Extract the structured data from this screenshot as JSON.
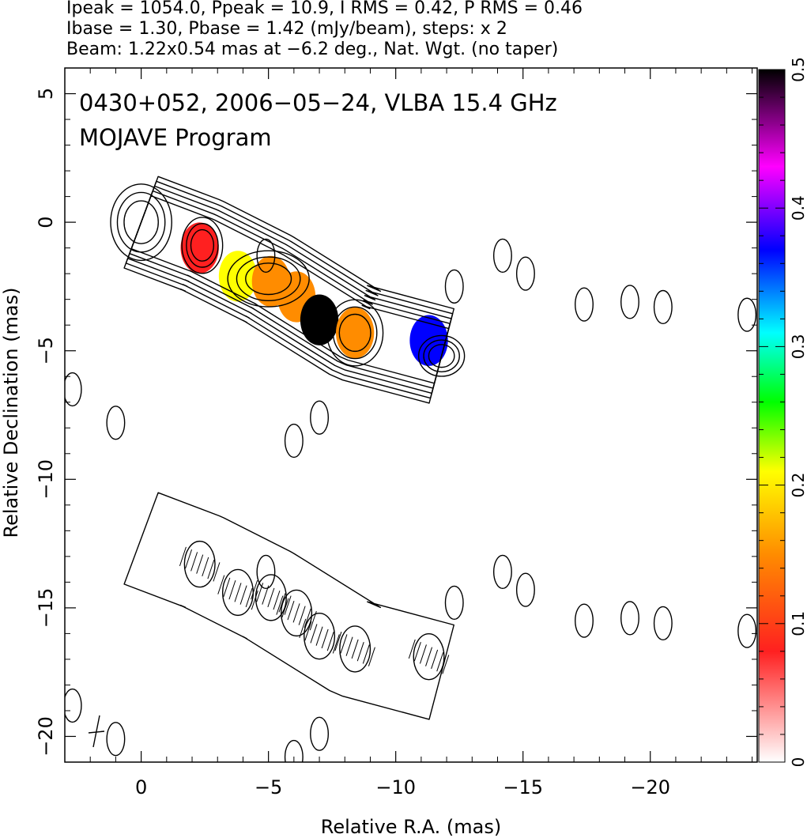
{
  "header": {
    "line1": "Ipeak = 1054.0, Ppeak = 10.9, I RMS = 0.42, P RMS = 0.46",
    "line2": "Ibase = 1.30, Pbase = 1.42 (mJy/beam), steps: x 2",
    "line3": "Beam: 1.22x0.54 mas at −6.2 deg., Nat. Wgt. (no taper)"
  },
  "chart_data": {
    "type": "heatmap",
    "title": "0430+052, 2006−05−24, VLBA 15.4 GHz",
    "subtitle": "MOJAVE Program",
    "xlabel": "Relative R.A. (mas)",
    "ylabel": "Relative Declination (mas)",
    "xlim": [
      3,
      -24.2
    ],
    "ylim": [
      -21,
      6
    ],
    "x_ticks": [
      0,
      -5,
      -10,
      -15,
      -20
    ],
    "x_tick_labels": [
      "0",
      "−5",
      "−10",
      "−15",
      "−20"
    ],
    "y_ticks": [
      5,
      0,
      -5,
      -10,
      -15,
      -20
    ],
    "y_tick_labels": [
      "5",
      "0",
      "−5",
      "−10",
      "−15",
      "−20"
    ],
    "colorbar": {
      "range": [
        0,
        0.5
      ],
      "ticks": [
        0,
        0.1,
        0.2,
        0.3,
        0.4,
        0.5
      ],
      "tick_labels": [
        "0",
        "0.1",
        "0.2",
        "0.3",
        "0.4",
        "0.5"
      ],
      "colors": [
        "#ffffff",
        "#ff2020",
        "#ff8c00",
        "#ffff00",
        "#00ff00",
        "#00ffff",
        "#0000ff",
        "#ff00ff",
        "#000000"
      ]
    },
    "total_intensity_jet_components": [
      {
        "x": 0.0,
        "y": 0.0,
        "a": 1.2,
        "b": 1.5
      },
      {
        "x": -2.4,
        "y": -0.9,
        "a": 0.8,
        "b": 1.1
      },
      {
        "x": -5.0,
        "y": -2.2,
        "a": 1.6,
        "b": 1.1
      },
      {
        "x": -8.4,
        "y": -4.3,
        "a": 1.1,
        "b": 1.3
      },
      {
        "x": -11.8,
        "y": -5.2,
        "a": 0.9,
        "b": 0.8
      }
    ],
    "polarization_spots": [
      {
        "x": -2.3,
        "y": -1.0,
        "frac": 0.08
      },
      {
        "x": -3.8,
        "y": -2.1,
        "frac": 0.2
      },
      {
        "x": -5.1,
        "y": -2.3,
        "frac": 0.1
      },
      {
        "x": -6.1,
        "y": -2.9,
        "frac": 0.14
      },
      {
        "x": -7.0,
        "y": -3.8,
        "frac": 0.5
      },
      {
        "x": -8.4,
        "y": -4.3,
        "frac": 0.09
      },
      {
        "x": -11.3,
        "y": -4.6,
        "frac": 0.33
      }
    ],
    "isolated_contours": [
      {
        "x": -14.2,
        "y": -1.3
      },
      {
        "x": -15.1,
        "y": -2.0
      },
      {
        "x": -17.4,
        "y": -3.2
      },
      {
        "x": -19.2,
        "y": -3.1
      },
      {
        "x": -20.5,
        "y": -3.3
      },
      {
        "x": -23.8,
        "y": -3.6
      },
      {
        "x": -4.9,
        "y": -1.3
      },
      {
        "x": -6.0,
        "y": -8.5
      },
      {
        "x": -7.0,
        "y": -7.6
      },
      {
        "x": 2.7,
        "y": -6.5
      },
      {
        "x": 1.0,
        "y": -7.8
      },
      {
        "x": -12.3,
        "y": -2.5
      }
    ]
  }
}
